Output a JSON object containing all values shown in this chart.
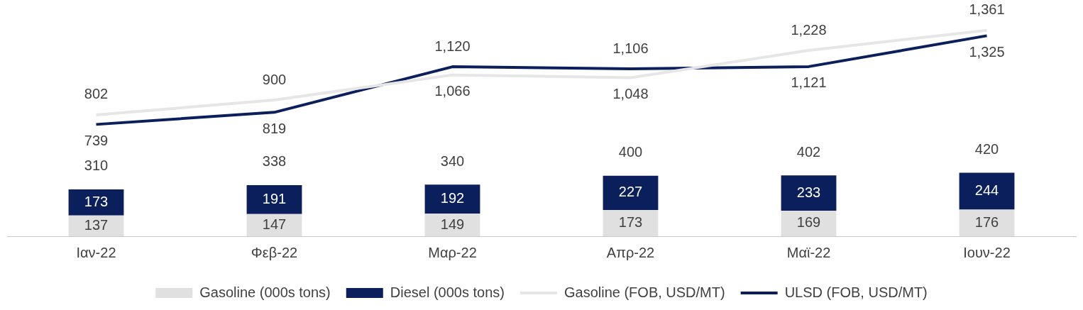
{
  "chart_data": {
    "type": "bar",
    "stacked": true,
    "data_labels": true,
    "legend": "bottom",
    "grid": false,
    "categories": [
      "Ιαν-22",
      "Φεβ-22",
      "Μαρ-22",
      "Απρ-22",
      "Μαϊ-22",
      "Ιουν-22"
    ],
    "series": [
      {
        "name": "Gasoline (000s tons)",
        "color": "#e0e0e0",
        "values": [
          137,
          147,
          149,
          173,
          169,
          176
        ]
      },
      {
        "name": "Diesel (000s tons)",
        "color": "#0b1f5c",
        "values": [
          173,
          191,
          192,
          227,
          233,
          244
        ]
      },
      {
        "name": "Gasoline (FOB, USD/MT)",
        "type": "line",
        "color": "#e6e6e6",
        "values": [
          802,
          900,
          1066,
          1048,
          1228,
          1361
        ],
        "value_labels": [
          "802",
          "900",
          "1,066",
          "1,048",
          "1,228",
          "1,361"
        ]
      },
      {
        "name": "ULSD (FOB, USD/MT)",
        "type": "line",
        "color": "#0b1f5c",
        "values": [
          739,
          819,
          1120,
          1106,
          1121,
          1325
        ],
        "value_labels": [
          "739",
          "819",
          "1,120",
          "1,106",
          "1,121",
          "1,325"
        ]
      }
    ],
    "totals": [
      "310",
      "338",
      "340",
      "400",
      "402",
      "420"
    ]
  }
}
